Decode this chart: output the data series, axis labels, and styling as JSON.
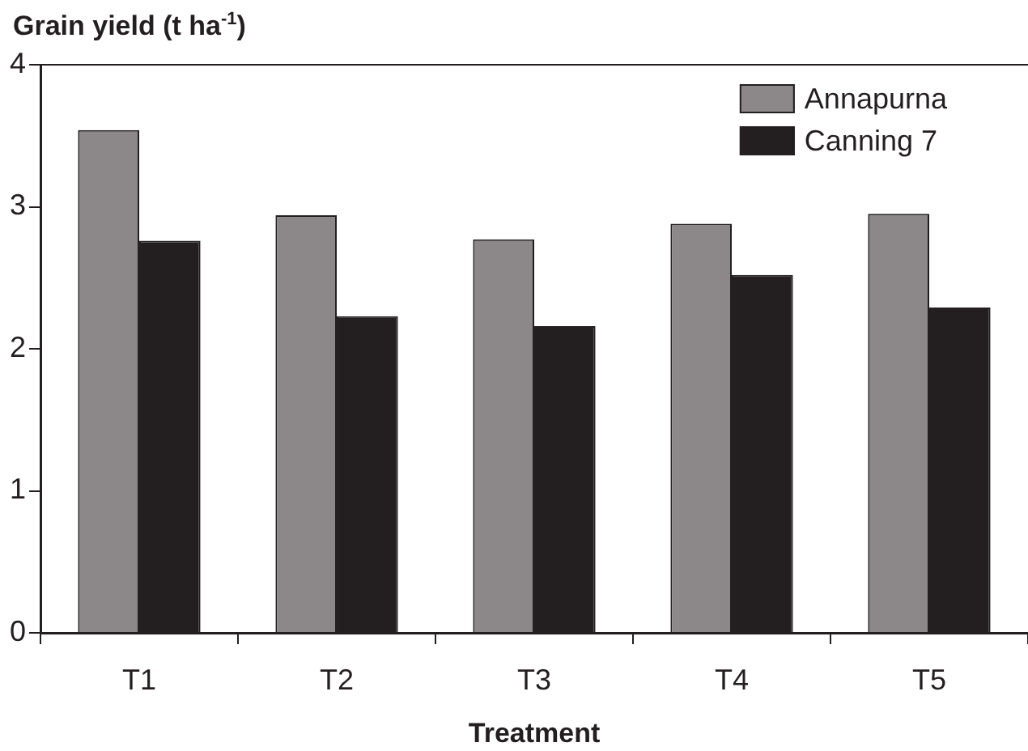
{
  "chart_data": {
    "type": "bar",
    "ylabel": "Grain yield (t ha$^{-1}$)",
    "xlabel": "Treatment",
    "categories": [
      "T1",
      "T2",
      "T3",
      "T4",
      "T5"
    ],
    "series": [
      {
        "name": "Annapurna",
        "color": "#8c8889",
        "values": [
          3.54,
          2.94,
          2.77,
          2.88,
          2.95
        ]
      },
      {
        "name": "Canning 7",
        "color": "#231f20",
        "values": [
          2.76,
          2.23,
          2.16,
          2.52,
          2.29
        ]
      }
    ],
    "ylim": [
      0,
      4
    ],
    "yticks": [
      0,
      1,
      2,
      3,
      4
    ],
    "grid": false,
    "legend": "top right"
  }
}
